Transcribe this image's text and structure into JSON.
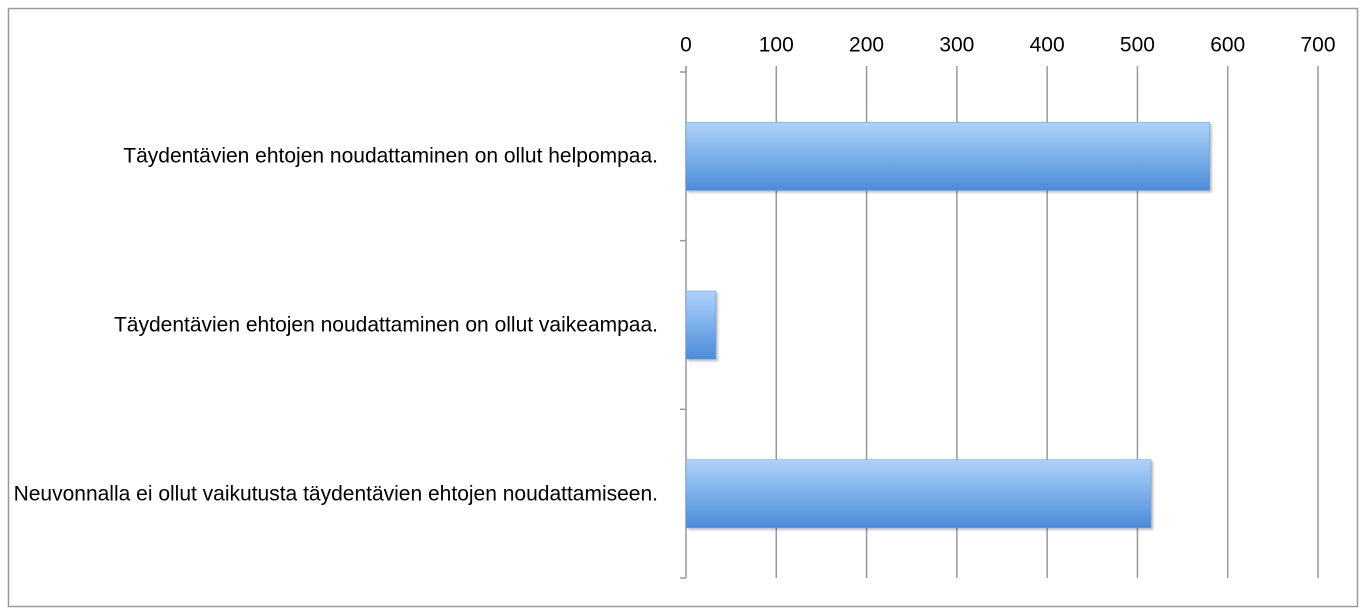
{
  "chart_data": {
    "type": "bar",
    "orientation": "horizontal",
    "categories": [
      "Täydentävien ehtojen noudattaminen on ollut helpompaa.",
      "Täydentävien ehtojen noudattaminen on ollut vaikeampaa.",
      "Neuvonnalla ei ollut vaikutusta täydentävien ehtojen noudattamiseen."
    ],
    "values": [
      580,
      33,
      515
    ],
    "color": "#5a9be4",
    "xlim": [
      0,
      700
    ],
    "xticks": [
      0,
      100,
      200,
      300,
      400,
      500,
      600,
      700
    ],
    "grid": true
  }
}
